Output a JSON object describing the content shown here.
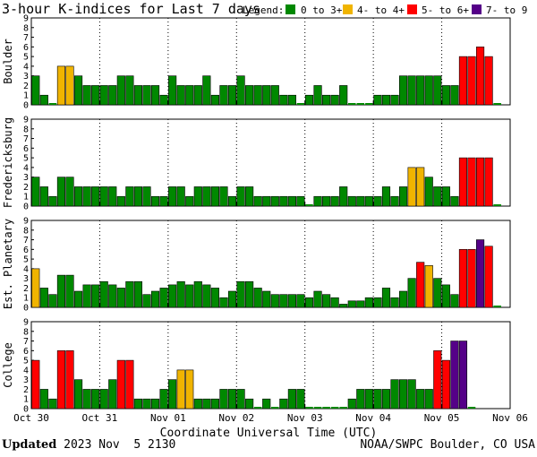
{
  "title": "3-hour K-indices for Last 7 days",
  "legend": {
    "label": "Legend:",
    "items": [
      {
        "text": "0 to 3+",
        "color": "#008800"
      },
      {
        "text": "4- to 4+",
        "color": "#f0b400"
      },
      {
        "text": "5- to 6+",
        "color": "#ff0000"
      },
      {
        "text": "7- to 9",
        "color": "#550088"
      }
    ]
  },
  "xlabel": "Coordinate Universal Time (UTC)",
  "footer": {
    "updated_label": "Updated",
    "updated_value": "2023 Nov  5 2130",
    "source": "NOAA/SWPC Boulder, CO USA"
  },
  "chart_data": [
    {
      "type": "bar",
      "ylabel": "Boulder",
      "ylim": [
        0,
        9
      ],
      "yticks": [
        "0",
        "1",
        "2",
        "3",
        "4",
        "5",
        "6",
        "7",
        "8",
        "9"
      ],
      "x_ticks": [
        "Oct 30",
        "Oct 31",
        "Nov 01",
        "Nov 02",
        "Nov 03",
        "Nov 04",
        "Nov 05",
        "Nov 06"
      ],
      "values": [
        3,
        1,
        0,
        4,
        4,
        3,
        2,
        2,
        2,
        2,
        3,
        3,
        2,
        2,
        2,
        1,
        3,
        2,
        2,
        2,
        3,
        1,
        2,
        2,
        3,
        2,
        2,
        2,
        2,
        1,
        1,
        0,
        1,
        2,
        1,
        1,
        2,
        0,
        0,
        0,
        1,
        1,
        1,
        3,
        3,
        3,
        3,
        3,
        2,
        2,
        5,
        5,
        6,
        5,
        0
      ]
    },
    {
      "type": "bar",
      "ylabel": "Fredericksburg",
      "ylim": [
        0,
        9
      ],
      "yticks": [
        "0",
        "1",
        "2",
        "3",
        "4",
        "5",
        "6",
        "7",
        "8",
        "9"
      ],
      "x_ticks": [
        "Oct 30",
        "Oct 31",
        "Nov 01",
        "Nov 02",
        "Nov 03",
        "Nov 04",
        "Nov 05",
        "Nov 06"
      ],
      "values": [
        3,
        2,
        1,
        3,
        3,
        2,
        2,
        2,
        2,
        2,
        1,
        2,
        2,
        2,
        1,
        1,
        2,
        2,
        1,
        2,
        2,
        2,
        2,
        1,
        2,
        2,
        1,
        1,
        1,
        1,
        1,
        1,
        0,
        1,
        1,
        1,
        2,
        1,
        1,
        1,
        1,
        2,
        1,
        2,
        4,
        4,
        3,
        2,
        2,
        1,
        5,
        5,
        5,
        5,
        0
      ]
    },
    {
      "type": "bar",
      "ylabel": "Est. Planetary",
      "ylim": [
        0,
        9
      ],
      "yticks": [
        "0",
        "1",
        "2",
        "3",
        "4",
        "5",
        "6",
        "7",
        "8",
        "9"
      ],
      "x_ticks": [
        "Oct 30",
        "Oct 31",
        "Nov 01",
        "Nov 02",
        "Nov 03",
        "Nov 04",
        "Nov 05",
        "Nov 06"
      ],
      "values": [
        4.0,
        2.0,
        1.33,
        3.33,
        3.33,
        1.67,
        2.33,
        2.33,
        2.67,
        2.33,
        2.0,
        2.67,
        2.67,
        1.33,
        1.67,
        2.0,
        2.33,
        2.67,
        2.33,
        2.67,
        2.33,
        2.0,
        1.0,
        1.67,
        2.67,
        2.67,
        2.0,
        1.67,
        1.33,
        1.33,
        1.33,
        1.33,
        1.0,
        1.67,
        1.33,
        1.0,
        0.33,
        0.67,
        0.67,
        1.0,
        1.0,
        2.0,
        1.0,
        1.67,
        3.0,
        4.67,
        4.33,
        3.0,
        2.33,
        1.33,
        6.0,
        6.0,
        7.0,
        6.33,
        0
      ]
    },
    {
      "type": "bar",
      "ylabel": "College",
      "ylim": [
        0,
        9
      ],
      "yticks": [
        "0",
        "1",
        "2",
        "3",
        "4",
        "5",
        "6",
        "7",
        "8",
        "9"
      ],
      "x_ticks": [
        "Oct 30",
        "Oct 31",
        "Nov 01",
        "Nov 02",
        "Nov 03",
        "Nov 04",
        "Nov 05",
        "Nov 06"
      ],
      "values": [
        5,
        2,
        1,
        6,
        6,
        3,
        2,
        2,
        2,
        3,
        5,
        5,
        1,
        1,
        1,
        2,
        3,
        4,
        4,
        1,
        1,
        1,
        2,
        2,
        2,
        1,
        0,
        1,
        0,
        1,
        2,
        2,
        0,
        0,
        0,
        0,
        0,
        1,
        2,
        2,
        2,
        2,
        3,
        3,
        3,
        2,
        2,
        6,
        5,
        7,
        7,
        0
      ]
    }
  ]
}
